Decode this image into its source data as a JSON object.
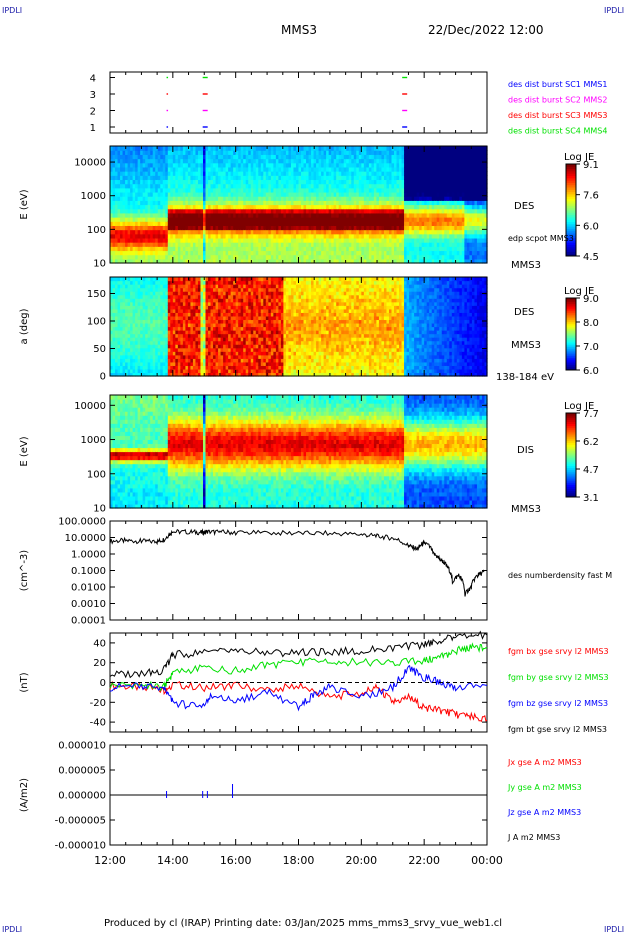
{
  "header": {
    "corner_left_top": "IPDLI",
    "corner_right_top": "IPDLI",
    "corner_left_bottom": "IPDLI",
    "corner_right_bottom": "IPDLI",
    "spacecraft": "MMS3",
    "datetime": "22/Dec/2022 12:00"
  },
  "footer": {
    "text": "Produced by cl (IRAP)   Printing date: 03/Jan/2025   mms_mms3_srvy_vue_web1.cl"
  },
  "colors": {
    "blue": "#0000ff",
    "magenta": "#ff00ff",
    "red": "#ff0000",
    "green": "#00e000",
    "black": "#000000"
  },
  "chart_data": [
    {
      "type": "scatter",
      "panel": "burst-availability",
      "xlabel": "",
      "ylabel": "",
      "y_ticks": [
        "4",
        "3",
        "2",
        "1"
      ],
      "legend": [
        {
          "name": "des dist burst SC1 MMS1",
          "color": "#0000ff"
        },
        {
          "name": "des dist burst SC2 MMS2",
          "color": "#ff00ff"
        },
        {
          "name": "des dist burst SC3 MMS3",
          "color": "#ff0000"
        },
        {
          "name": "des dist burst SC4 MMS4",
          "color": "#00e000"
        }
      ],
      "series": [
        {
          "name": "des dist burst SC1 MMS1",
          "level": 1,
          "x_hours": [
            13.8,
            14.95,
            21.3
          ]
        },
        {
          "name": "des dist burst SC2 MMS2",
          "level": 2,
          "x_hours": [
            13.8,
            14.95,
            21.3
          ]
        },
        {
          "name": "des dist burst SC3 MMS3",
          "level": 3,
          "x_hours": [
            13.8,
            14.95,
            21.3
          ]
        },
        {
          "name": "des dist burst SC4 MMS4",
          "level": 4,
          "x_hours": [
            13.8,
            14.95,
            21.3
          ]
        }
      ]
    },
    {
      "type": "heatmap",
      "panel": "des-energy-spectrogram",
      "ylabel": "E (eV)",
      "ylim": [
        10,
        30000
      ],
      "y_scale": "log",
      "y_ticks": [
        "10000",
        "1000",
        "100",
        "10"
      ],
      "labels_right": [
        "DES",
        "edp scpot MMS3",
        "MMS3"
      ],
      "colorbar": {
        "title": "Log JE",
        "ticks": [
          "9.1",
          "7.6",
          "6.0",
          "4.5"
        ],
        "range": [
          4.5,
          9.1
        ]
      }
    },
    {
      "type": "heatmap",
      "panel": "des-pitch-angle",
      "ylabel": "a (deg)",
      "ylim": [
        0,
        180
      ],
      "y_ticks": [
        "150",
        "100",
        "50",
        "0"
      ],
      "labels_right": [
        "DES",
        "MMS3",
        "138-184 eV"
      ],
      "colorbar": {
        "title": "Log JE",
        "ticks": [
          "9.0",
          "8.0",
          "7.0",
          "6.0"
        ],
        "range": [
          6.0,
          9.0
        ]
      }
    },
    {
      "type": "heatmap",
      "panel": "dis-energy-spectrogram",
      "ylabel": "E (eV)",
      "ylim": [
        10,
        20000
      ],
      "y_scale": "log",
      "y_ticks": [
        "10000",
        "1000",
        "100",
        "10"
      ],
      "labels_right": [
        "DIS",
        "MMS3"
      ],
      "colorbar": {
        "title": "Log JE",
        "ticks": [
          "7.7",
          "6.2",
          "4.7",
          "3.1"
        ],
        "range": [
          3.1,
          7.7
        ]
      }
    },
    {
      "type": "line",
      "panel": "density",
      "ylabel": "(cm^-3)",
      "y_scale": "log",
      "ylim": [
        0.0001,
        100
      ],
      "y_ticks": [
        "100.0000",
        "10.0000",
        "1.0000",
        "0.1000",
        "0.0100",
        "0.0010",
        "0.0001"
      ],
      "series": [
        {
          "name": "des numberdensity fast M",
          "color": "#000000",
          "x": [
            12.0,
            12.5,
            13.0,
            13.5,
            13.75,
            14.0,
            14.5,
            14.9,
            15.1,
            15.5,
            16.0,
            17.0,
            18.0,
            19.0,
            20.0,
            20.5,
            21.0,
            21.5,
            21.8,
            22.0,
            22.3,
            22.5,
            22.7,
            22.9,
            23.1,
            23.3,
            23.5,
            23.7,
            23.9
          ],
          "y": [
            6.0,
            6.5,
            6.0,
            5.5,
            8.0,
            22,
            22,
            20,
            22,
            21,
            20,
            19,
            18,
            18,
            15,
            12,
            9,
            3,
            2,
            5,
            1,
            0.5,
            0.2,
            0.02,
            0.05,
            0.003,
            0.01,
            0.05,
            0.08
          ]
        }
      ]
    },
    {
      "type": "line",
      "panel": "magnetic-field",
      "ylabel": "(nT)",
      "ylim": [
        -50,
        50
      ],
      "y_ticks": [
        "40",
        "20",
        "0",
        "-20",
        "-40"
      ],
      "series": [
        {
          "name": "fgm bx gse srvy l2 MMS3",
          "color": "#ff0000",
          "x": [
            12.0,
            13.0,
            13.7,
            14.0,
            15.0,
            16.0,
            17.0,
            18.0,
            19.0,
            20.0,
            20.5,
            21.0,
            21.5,
            22.0,
            22.5,
            23.0,
            23.5,
            24.0
          ],
          "y": [
            -3,
            -5,
            -8,
            -2,
            -5,
            -3,
            -8,
            -3,
            -15,
            -10,
            -5,
            -20,
            -15,
            -25,
            -28,
            -32,
            -35,
            -38
          ]
        },
        {
          "name": "fgm by gse srvy l2 MMS3",
          "color": "#00e000",
          "x": [
            12.0,
            13.0,
            13.7,
            14.0,
            15.0,
            16.0,
            17.0,
            18.0,
            19.0,
            20.0,
            21.0,
            22.0,
            22.5,
            23.0,
            23.5,
            24.0
          ],
          "y": [
            -3,
            -2,
            -5,
            10,
            15,
            12,
            18,
            20,
            22,
            20,
            20,
            22,
            25,
            32,
            35,
            35
          ]
        },
        {
          "name": "fgm bz gse srvy l2 MMS3",
          "color": "#0000ff",
          "x": [
            12.0,
            13.0,
            13.7,
            14.0,
            14.8,
            15.2,
            16.0,
            17.0,
            18.0,
            18.5,
            19.0,
            20.0,
            21.0,
            21.5,
            22.0,
            22.5,
            23.0,
            24.0
          ],
          "y": [
            -5,
            -3,
            -5,
            -20,
            -25,
            -15,
            -18,
            -10,
            -25,
            -12,
            -5,
            -15,
            -5,
            15,
            5,
            0,
            -5,
            -3
          ]
        },
        {
          "name": "fgm bt gse srvy l2 MMS3",
          "color": "#000000",
          "x": [
            12.0,
            13.0,
            13.7,
            14.0,
            15.0,
            16.0,
            17.0,
            18.0,
            19.0,
            20.0,
            21.0,
            22.0,
            22.5,
            23.0,
            24.0
          ],
          "y": [
            8,
            9,
            12,
            28,
            30,
            32,
            30,
            30,
            31,
            32,
            35,
            38,
            42,
            46,
            48
          ]
        }
      ]
    },
    {
      "type": "line",
      "panel": "current-density",
      "ylabel": "(A/m2)",
      "ylim": [
        -1e-05,
        1e-05
      ],
      "y_ticks": [
        "0.000010",
        "0.000005",
        "0.000000",
        "-0.000005",
        "-0.000010"
      ],
      "series": [
        {
          "name": "Jx gse A m2 MMS3",
          "color": "#ff0000",
          "x": [
            12,
            24
          ],
          "y": [
            0,
            0
          ]
        },
        {
          "name": "Jy gse A m2 MMS3",
          "color": "#00e000",
          "x": [
            12,
            24
          ],
          "y": [
            0,
            0
          ]
        },
        {
          "name": "Jz gse A m2 MMS3",
          "color": "#0000ff",
          "x": [
            12,
            24
          ],
          "y": [
            0,
            0
          ]
        },
        {
          "name": "J A m2 MMS3",
          "color": "#000000",
          "x": [
            12,
            24
          ],
          "y": [
            0,
            0
          ]
        }
      ]
    }
  ],
  "x_axis": {
    "ticks": [
      "12:00",
      "14:00",
      "16:00",
      "18:00",
      "20:00",
      "22:00",
      "00:00"
    ],
    "range_hours": [
      12,
      24
    ]
  }
}
